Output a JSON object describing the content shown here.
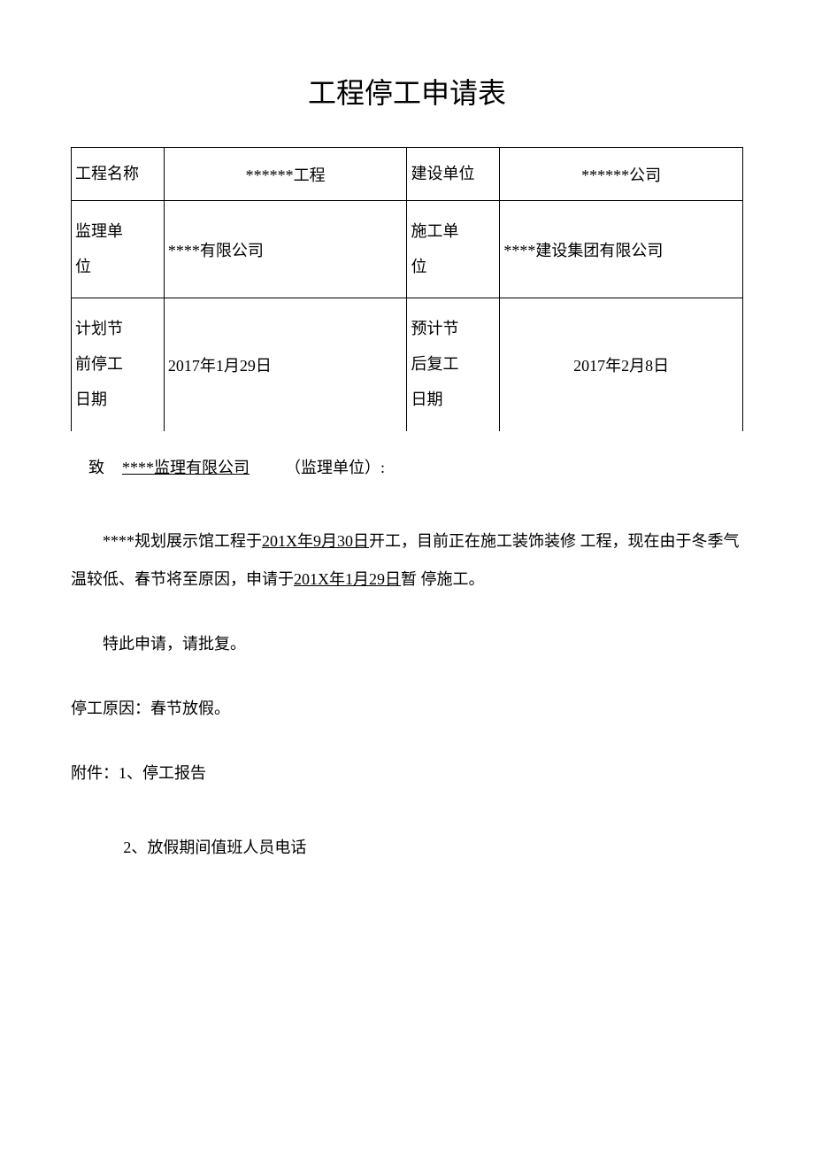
{
  "title": "工程停工申请表",
  "table": {
    "row1": {
      "label1": "工程名称",
      "value1": "******工程",
      "label2": "建设单位",
      "value2": "******公司"
    },
    "row2": {
      "label1": "监理单位",
      "value1": "****有限公司",
      "label2": "施工单位",
      "value2": "****建设集团有限公司"
    },
    "row3": {
      "label1": "计划节前停工日期",
      "value1": "2017年1月29日",
      "label2": "预计节后复工日期",
      "value2": "2017年2月8日"
    }
  },
  "body": {
    "to_prefix": "致",
    "to_company": "****监理有限公司",
    "to_suffix": "（监理单位）:",
    "para1_a": "****规划展示馆工程于",
    "para1_date1": "201X年9月30日",
    "para1_b": "开工，目前正在施工装饰装修 工程，现在由于冬季气温较低、春节将至原因，申请于",
    "para1_date2": "201X年1月29日",
    "para1_c": "暂 停施工。",
    "para2": "特此申请，请批复。",
    "reason": "停工原因：春节放假。",
    "attach1": "附件：1、停工报告",
    "attach2": "2、放假期间值班人员电话"
  }
}
